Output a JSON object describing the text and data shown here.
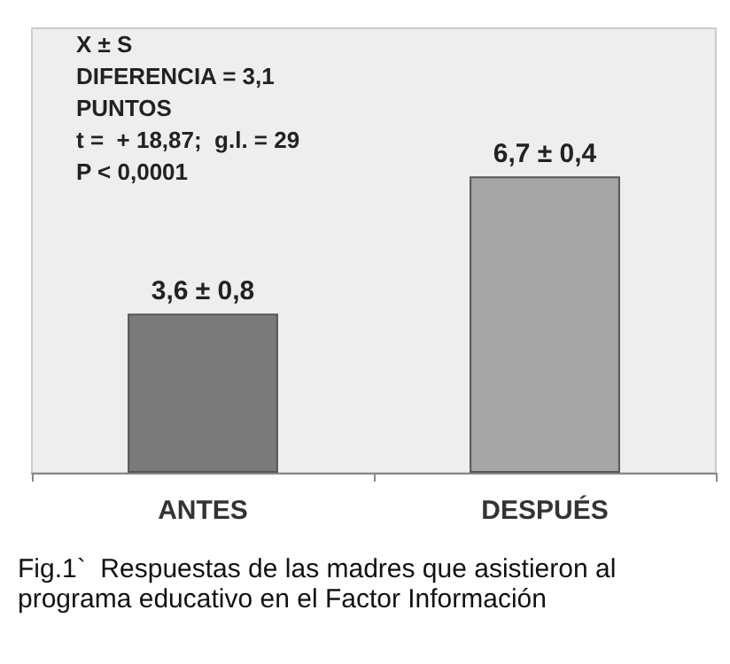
{
  "chart_data": {
    "type": "bar",
    "categories": [
      "ANTES",
      "DESPUÉS"
    ],
    "values": [
      3.6,
      6.7
    ],
    "colors": [
      "#7a7a7a",
      "#a6a6a6"
    ],
    "value_labels": [
      "3,6 ± 0,8",
      "6,7 ± 0,4"
    ],
    "annotations": [
      "X ± S",
      "DIFERENCIA = 3,1",
      "PUNTOS",
      "t =  + 18,87;  g.l. = 29",
      "P < 0,0001",
      "Fig.1`  Respuestas de las madres que asistieron al programa educativo en el Factor Información"
    ]
  }
}
